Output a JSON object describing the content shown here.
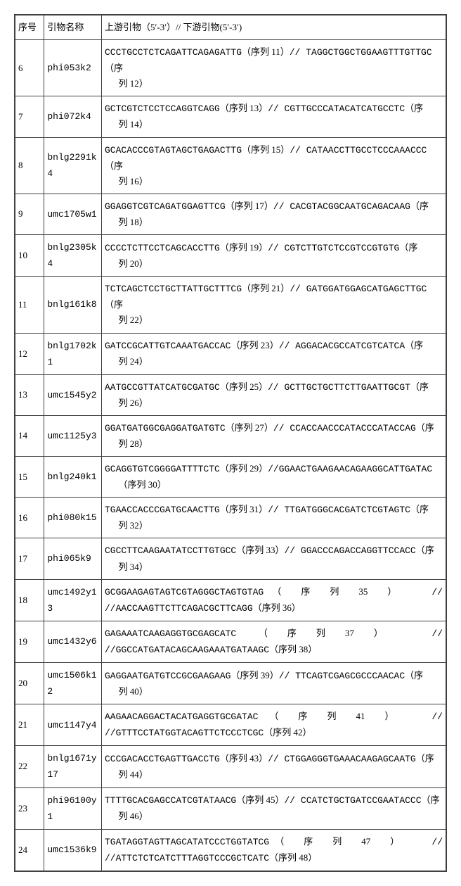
{
  "table": {
    "header": {
      "col1": "序号",
      "col2": "引物名称",
      "col3": "上游引物（5′-3′）// 下游引物(5′-3′)"
    },
    "rows": [
      {
        "no": "6",
        "name": "phi053k2",
        "fwd": "CCCTGCCTCTCAGATTCAGAGATTG",
        "fn": "11",
        "rev": "TAGGCTGGCTGGAAGTTTGTTGC",
        "rn": "12",
        "style": "a"
      },
      {
        "no": "7",
        "name": "phi072k4",
        "fwd": "GCTCGTCTCCTCCAGGTCAGG",
        "fn": "13",
        "rev": "CGTTGCCCATACATCATGCCTC",
        "rn": "14",
        "style": "a"
      },
      {
        "no": "8",
        "name": "bnlg2291k4",
        "fwd": "GCACACCCGTAGTAGCTGAGACTTG",
        "fn": "15",
        "rev": "CATAACCTTGCCTCCCAAACCC",
        "rn": "16",
        "style": "a"
      },
      {
        "no": "9",
        "name": "umc1705w1",
        "fwd": "GGAGGTCGTCAGATGGAGTTCG",
        "fn": "17",
        "rev": "CACGTACGGCAATGCAGACAAG",
        "rn": "18",
        "style": "a"
      },
      {
        "no": "10",
        "name": "bnlg2305k4",
        "fwd": "CCCCTCTTCCTCAGCACCTTG",
        "fn": "19",
        "rev": "CGTCTTGTCTCCGTCCGTGTG",
        "rn": "20",
        "style": "a"
      },
      {
        "no": "11",
        "name": "bnlg161k8",
        "fwd": "TCTCAGCTCCTGCTTATTGCTTTCG",
        "fn": "21",
        "rev": "GATGGATGGAGCATGAGCTTGC",
        "rn": "22",
        "style": "a"
      },
      {
        "no": "12",
        "name": "bnlg1702k1",
        "fwd": "GATCCGCATTGTCAAATGACCAC",
        "fn": "23",
        "rev": "AGGACACGCCATCGTCATCA",
        "rn": "24",
        "style": "a"
      },
      {
        "no": "13",
        "name": "umc1545y2",
        "fwd": "AATGCCGTTATCATGCGATGC",
        "fn": "25",
        "rev": "GCTTGCTGCTTCTTGAATTGCGT",
        "rn": "26",
        "style": "a"
      },
      {
        "no": "14",
        "name": "umc1125y3",
        "fwd": "GGATGATGGCGAGGATGATGTC",
        "fn": "27",
        "rev": "CCACCAACCCATACCCATACCAG",
        "rn": "28",
        "style": "a"
      },
      {
        "no": "15",
        "name": "bnlg240k1",
        "fwd": "GCAGGTGTCGGGGATTTTCTC",
        "fn": "29",
        "rev": "GGAACTGAAGAACAGAAGGCATTGATAC",
        "rn": "30",
        "style": "b"
      },
      {
        "no": "16",
        "name": "phi080k15",
        "fwd": "TGAACCACCCGATGCAACTTG",
        "fn": "31",
        "rev": "TTGATGGGCACGATCTCGTAGTC",
        "rn": "32",
        "style": "a"
      },
      {
        "no": "17",
        "name": "phi065k9",
        "fwd": "CGCCTTCAAGAATATCCTTGTGCC",
        "fn": "33",
        "rev": "GGACCCAGACCAGGTTCCACC",
        "rn": "34",
        "style": "a"
      },
      {
        "no": "18",
        "name": "umc1492y13",
        "fwd": "GCGGAAGAGTAGTCGTAGGGCTAGTGTAG",
        "fn": "35",
        "rev": "AACCAAGTTCTTCAGACGCTTCAGG",
        "rn": "36",
        "style": "c"
      },
      {
        "no": "19",
        "name": "umc1432y6",
        "fwd": "GAGAAATCAAGAGGTGCGAGCATC",
        "fn": "37",
        "rev": "GGCCATGATACAGCAAGAAATGATAAGC",
        "rn": "38",
        "style": "c"
      },
      {
        "no": "20",
        "name": "umc1506k12",
        "fwd": "GAGGAATGATGTCCGCGAAGAAG",
        "fn": "39",
        "rev": "TTCAGTCGAGCGCCCAACAC",
        "rn": "40",
        "style": "a"
      },
      {
        "no": "21",
        "name": "umc1147y4",
        "fwd": "AAGAACAGGACTACATGAGGTGCGATAC",
        "fn": "41",
        "rev": "GTTTCCTATGGTACAGTTCTCCCTCGC",
        "rn": "42",
        "style": "c"
      },
      {
        "no": "22",
        "name": "bnlg1671y17",
        "fwd": "CCCGACACCTGAGTTGACCTG",
        "fn": "43",
        "rev": "CTGGAGGGTGAAACAAGAGCAATG",
        "rn": "44",
        "style": "a"
      },
      {
        "no": "23",
        "name": "phi96100y1",
        "fwd": "TTTTGCACGAGCCATCGTATAACG",
        "fn": "45",
        "rev": "CCATCTGCTGATCCGAATACCC",
        "rn": "46",
        "style": "a"
      },
      {
        "no": "24",
        "name": "umc1536k9",
        "fwd": "TGATAGGTAGTTAGCATATCCCTGGTATCG",
        "fn": "47",
        "rev": "ATTCTCTCATCTTTAGGTCCCGCTCATC",
        "rn": "48",
        "style": "c"
      }
    ]
  },
  "text": {
    "seq_prefix": "（序列 ",
    "seq_suffix": "）",
    "sep": "// ",
    "sep_spaced": " //",
    "wide_open": "（",
    "wide_seq": "序",
    "wide_lie": "列",
    "wide_close": "）"
  },
  "style": {
    "border_color": "#404040",
    "bg": "#ffffff",
    "font_size": 13,
    "mono_font": "Courier New"
  }
}
